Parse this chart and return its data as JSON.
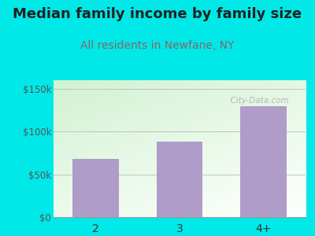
{
  "categories": [
    "2",
    "3",
    "4+"
  ],
  "values": [
    68000,
    88000,
    130000
  ],
  "bar_color": "#b09cc8",
  "title": "Median family income by family size",
  "subtitle": "All residents in Newfane, NY",
  "title_fontsize": 13,
  "subtitle_fontsize": 10,
  "title_color": "#222222",
  "subtitle_color": "#886666",
  "ylim": [
    0,
    160000
  ],
  "yticks": [
    0,
    50000,
    100000,
    150000
  ],
  "ytick_labels": [
    "$0",
    "$50k",
    "$100k",
    "$150k"
  ],
  "bg_outer": "#00e8e8",
  "watermark": "  City-Data.com"
}
